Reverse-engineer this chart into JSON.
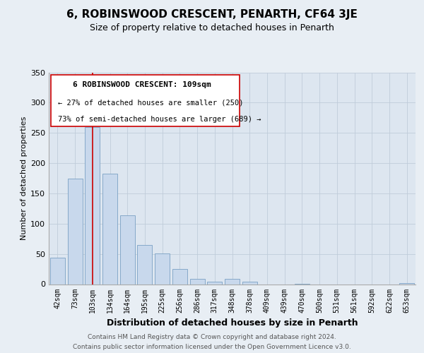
{
  "title": "6, ROBINSWOOD CRESCENT, PENARTH, CF64 3JE",
  "subtitle": "Size of property relative to detached houses in Penarth",
  "xlabel": "Distribution of detached houses by size in Penarth",
  "ylabel": "Number of detached properties",
  "bar_labels": [
    "42sqm",
    "73sqm",
    "103sqm",
    "134sqm",
    "164sqm",
    "195sqm",
    "225sqm",
    "256sqm",
    "286sqm",
    "317sqm",
    "348sqm",
    "378sqm",
    "409sqm",
    "439sqm",
    "470sqm",
    "500sqm",
    "531sqm",
    "561sqm",
    "592sqm",
    "622sqm",
    "653sqm"
  ],
  "bar_values": [
    44,
    175,
    260,
    183,
    114,
    65,
    51,
    25,
    9,
    4,
    9,
    4,
    0,
    0,
    1,
    0,
    0,
    0,
    0,
    0,
    2
  ],
  "bar_color": "#c8d8ec",
  "bar_edge_color": "#7aa0c4",
  "vline_x": 2,
  "vline_color": "#cc0000",
  "ylim": [
    0,
    350
  ],
  "yticks": [
    0,
    50,
    100,
    150,
    200,
    250,
    300,
    350
  ],
  "annotation_title": "6 ROBINSWOOD CRESCENT: 109sqm",
  "annotation_line1": "← 27% of detached houses are smaller (250)",
  "annotation_line2": "73% of semi-detached houses are larger (689) →",
  "footer_line1": "Contains HM Land Registry data © Crown copyright and database right 2024.",
  "footer_line2": "Contains public sector information licensed under the Open Government Licence v3.0.",
  "bg_color": "#e8eef4",
  "plot_bg_color": "#dde6f0",
  "grid_color": "#c0ccda"
}
